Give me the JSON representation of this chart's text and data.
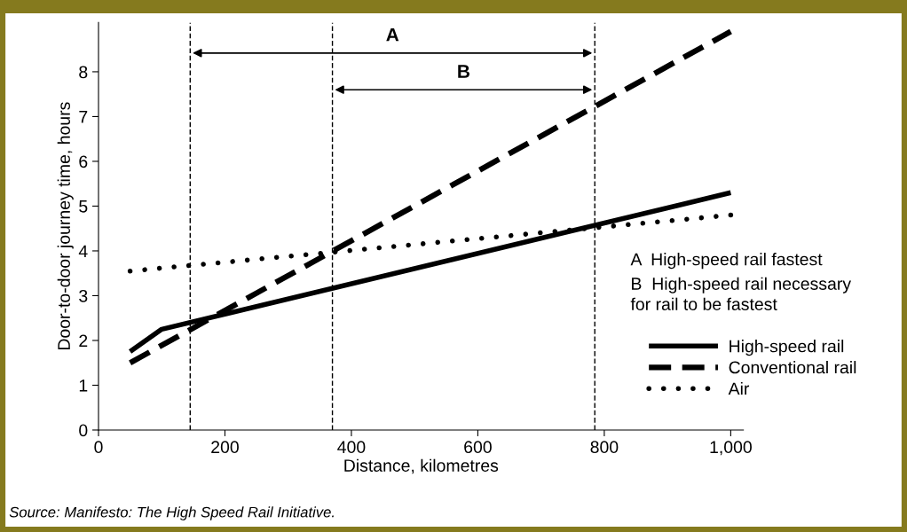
{
  "chart_data": {
    "type": "line",
    "xlabel": "Distance, kilometres",
    "ylabel": "Door-to-door journey time, hours",
    "series": [
      {
        "name": "High-speed rail",
        "color": "#000000",
        "line_style": "solid",
        "x": [
          50,
          100,
          1000
        ],
        "values": [
          1.75,
          2.25,
          5.3
        ]
      },
      {
        "name": "Conventional rail",
        "color": "#000000",
        "line_style": "dashed",
        "x": [
          50,
          1000
        ],
        "values": [
          1.5,
          8.9
        ]
      },
      {
        "name": "Air",
        "color": "#000000",
        "line_style": "dotted",
        "x": [
          50,
          1000
        ],
        "values": [
          3.55,
          4.8
        ]
      }
    ],
    "xlim": [
      0,
      1020
    ],
    "ylim": [
      0,
      9.1
    ],
    "xticks": [
      0,
      200,
      400,
      600,
      800,
      {
        "value": 1000,
        "label": "1,000"
      }
    ],
    "yticks": [
      0,
      1,
      2,
      3,
      4,
      5,
      6,
      7,
      8
    ],
    "ref_lines": [
      {
        "axis": "x",
        "value": 145,
        "color": "#000000",
        "line_style": "dashed"
      },
      {
        "axis": "x",
        "value": 370,
        "color": "#000000",
        "line_style": "dashed"
      },
      {
        "axis": "x",
        "value": 785,
        "color": "#000000",
        "line_style": "dashed"
      }
    ],
    "annotations": [
      "A",
      "B",
      "A  High-speed rail fastest",
      "B  High-speed rail necessary\nfor rail to be fastest",
      "Source: Manifesto: The High Speed Rail Initiative."
    ],
    "grid": false,
    "legend": "bottom right",
    "marker": "none"
  }
}
